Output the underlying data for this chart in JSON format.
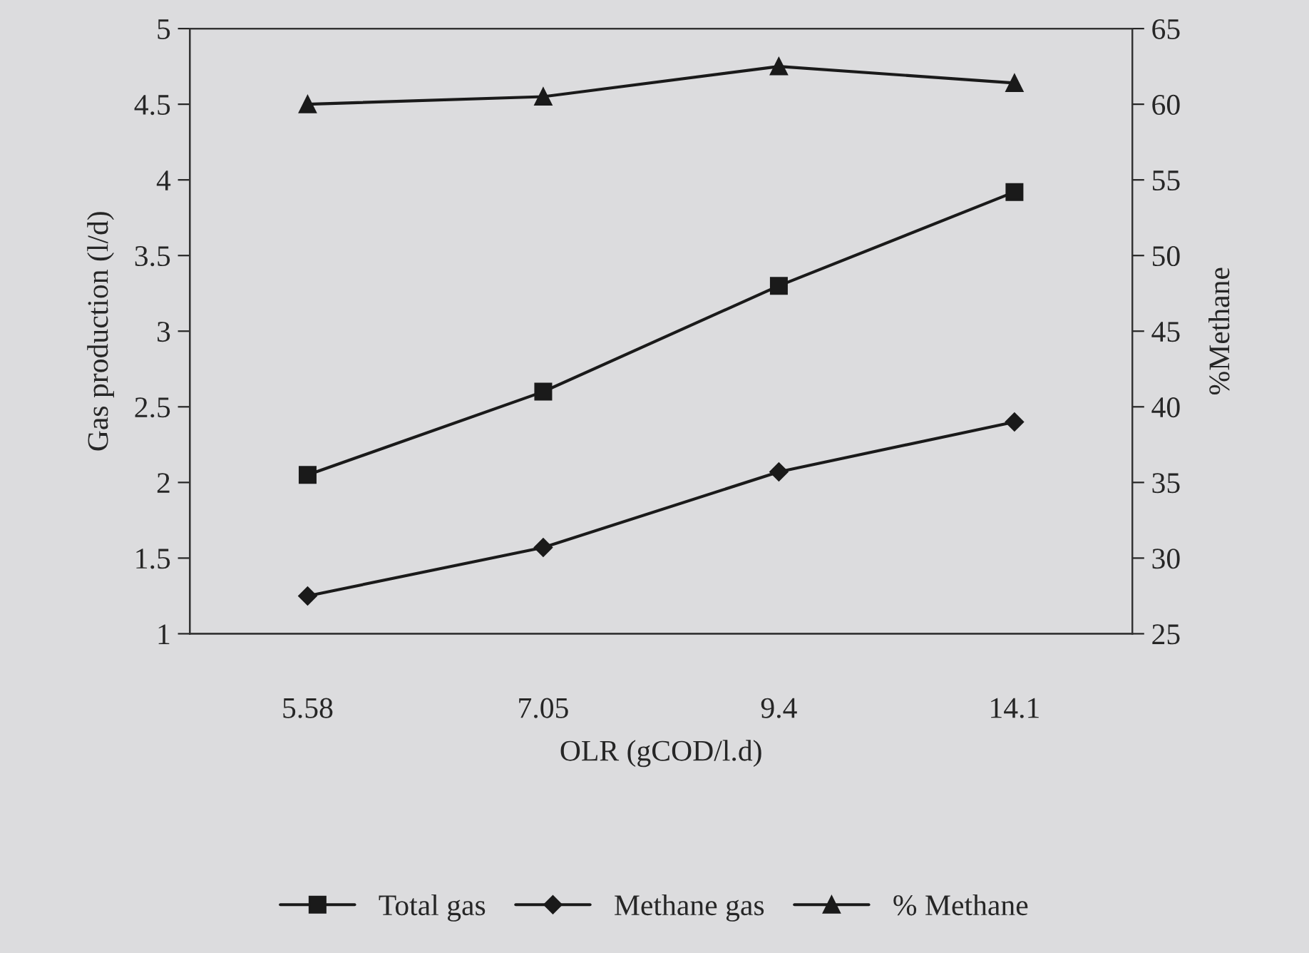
{
  "chart_data": {
    "type": "line",
    "xlabel": "OLR (gCOD/l.d)",
    "ylabel": "Gas production (l/d)",
    "y2label": "%Methane",
    "categories": [
      "5.58",
      "7.05",
      "9.4",
      "14.1"
    ],
    "series": [
      {
        "name": "Total gas",
        "color": "#1a1a1a",
        "marker": "square",
        "values": [
          2.05,
          2.6,
          3.3,
          3.92
        ]
      },
      {
        "name": "Methane gas",
        "color": "#1a1a1a",
        "marker": "diamond",
        "values": [
          1.25,
          1.57,
          2.07,
          2.4
        ]
      },
      {
        "name": "% Methane",
        "color": "#1a1a1a",
        "marker": "triangle",
        "axis": "y2",
        "values": [
          60,
          60.5,
          62.5,
          61.4
        ]
      }
    ],
    "ylim": [
      1,
      5
    ],
    "yticks": [
      1,
      1.5,
      2,
      2.5,
      3,
      3.5,
      4,
      4.5,
      5
    ],
    "y2lim": [
      25,
      65
    ],
    "y2ticks": [
      25,
      30,
      35,
      40,
      45,
      50,
      55,
      60,
      65
    ],
    "grid": false,
    "legend": "bottom",
    "line_style": "solid"
  }
}
